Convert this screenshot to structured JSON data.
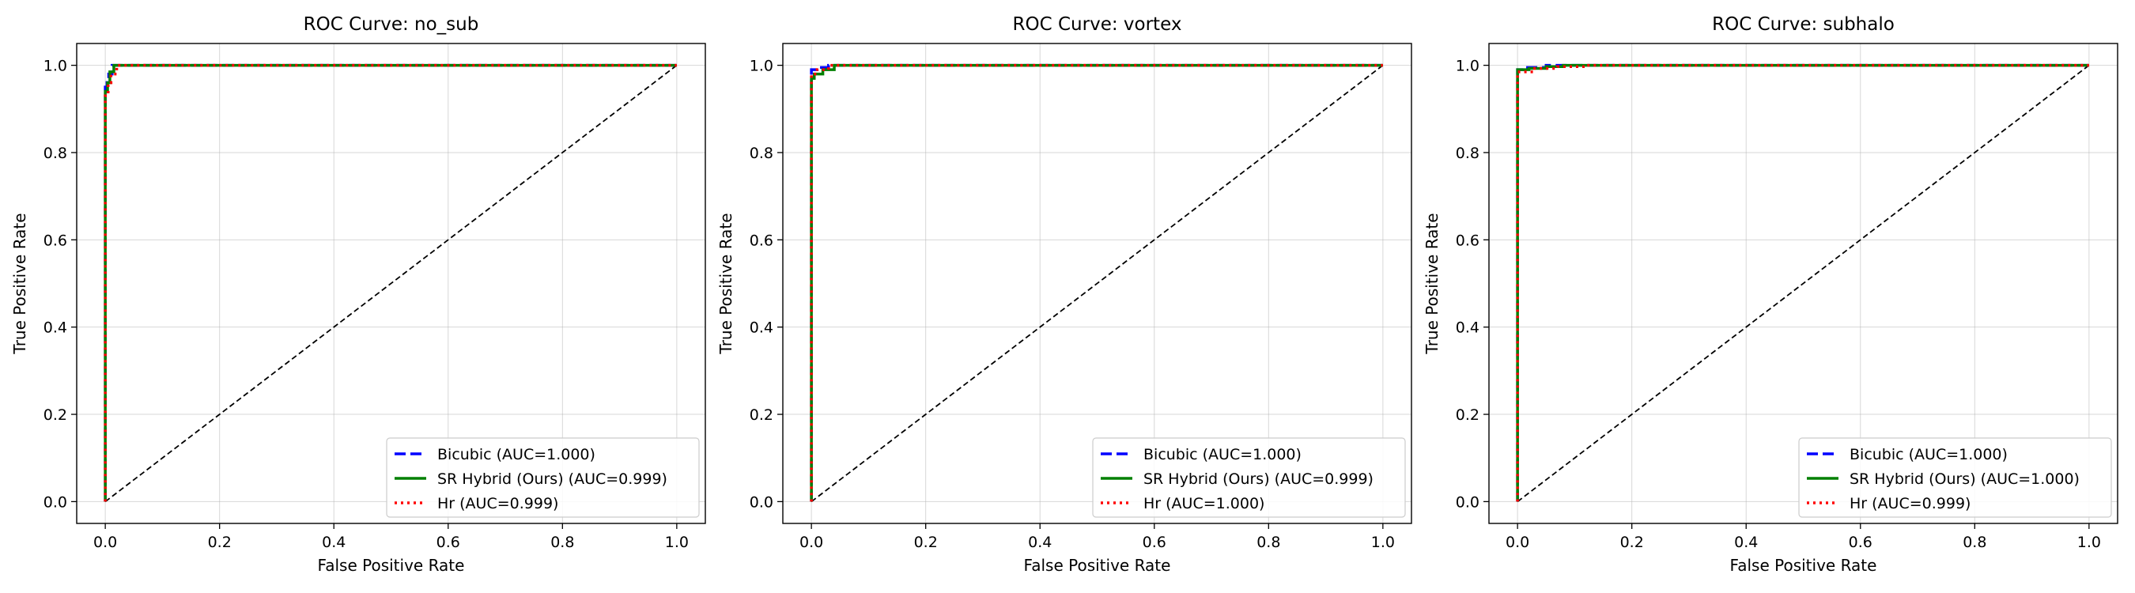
{
  "colors": {
    "bicubic": "#0000ff",
    "sr_hybrid": "#008000",
    "hr": "#ff0000",
    "diagonal": "#000000",
    "grid": "#b0b0b0"
  },
  "chart_data": [
    {
      "type": "line",
      "title": "ROC Curve: no_sub",
      "xlabel": "False Positive Rate",
      "ylabel": "True Positive Rate",
      "xlim": [
        -0.05,
        1.05
      ],
      "ylim": [
        -0.05,
        1.05
      ],
      "xticks": [
        "0.0",
        "0.2",
        "0.4",
        "0.6",
        "0.8",
        "1.0"
      ],
      "yticks": [
        "0.0",
        "0.2",
        "0.4",
        "0.6",
        "0.8",
        "1.0"
      ],
      "grid": true,
      "legend_position": "lower right",
      "series": [
        {
          "name": "Bicubic (AUC=1.000)",
          "style": "dashed",
          "color_key": "bicubic",
          "x": [
            0,
            0,
            0.003,
            0.003,
            0.006,
            0.006,
            0.012,
            0.012,
            1.0
          ],
          "y": [
            0,
            0.95,
            0.95,
            0.97,
            0.97,
            0.98,
            0.98,
            1.0,
            1.0
          ]
        },
        {
          "name": "SR Hybrid (Ours) (AUC=0.999)",
          "style": "solid",
          "color_key": "sr_hybrid",
          "x": [
            0,
            0,
            0.004,
            0.004,
            0.008,
            0.008,
            0.015,
            0.015,
            1.0
          ],
          "y": [
            0,
            0.94,
            0.94,
            0.96,
            0.96,
            0.985,
            0.985,
            1.0,
            1.0
          ]
        },
        {
          "name": "Hr (AUC=0.999)",
          "style": "dotted",
          "color_key": "hr",
          "x": [
            0,
            0,
            0.005,
            0.005,
            0.01,
            0.01,
            0.02,
            0.02,
            1.0
          ],
          "y": [
            0,
            0.93,
            0.93,
            0.96,
            0.96,
            0.98,
            0.98,
            1.0,
            1.0
          ]
        }
      ]
    },
    {
      "type": "line",
      "title": "ROC Curve: vortex",
      "xlabel": "False Positive Rate",
      "ylabel": "True Positive Rate",
      "xlim": [
        -0.05,
        1.05
      ],
      "ylim": [
        -0.05,
        1.05
      ],
      "xticks": [
        "0.0",
        "0.2",
        "0.4",
        "0.6",
        "0.8",
        "1.0"
      ],
      "yticks": [
        "0.0",
        "0.2",
        "0.4",
        "0.6",
        "0.8",
        "1.0"
      ],
      "grid": true,
      "legend_position": "lower right",
      "series": [
        {
          "name": "Bicubic (AUC=1.000)",
          "style": "dashed",
          "color_key": "bicubic",
          "x": [
            0,
            0,
            0.01,
            0.01,
            0.03,
            0.03,
            1.0
          ],
          "y": [
            0,
            0.99,
            0.99,
            0.995,
            0.995,
            1.0,
            1.0
          ]
        },
        {
          "name": "SR Hybrid (Ours) (AUC=0.999)",
          "style": "solid",
          "color_key": "sr_hybrid",
          "x": [
            0,
            0,
            0.005,
            0.005,
            0.02,
            0.02,
            0.04,
            0.04,
            1.0
          ],
          "y": [
            0,
            0.97,
            0.97,
            0.98,
            0.98,
            0.99,
            0.99,
            1.0,
            1.0
          ]
        },
        {
          "name": "Hr (AUC=1.000)",
          "style": "dotted",
          "color_key": "hr",
          "x": [
            0,
            0,
            0.01,
            0.01,
            0.03,
            0.03,
            1.0
          ],
          "y": [
            0,
            0.98,
            0.98,
            0.99,
            0.99,
            1.0,
            1.0
          ]
        }
      ]
    },
    {
      "type": "line",
      "title": "ROC Curve: subhalo",
      "xlabel": "False Positive Rate",
      "ylabel": "True Positive Rate",
      "xlim": [
        -0.05,
        1.05
      ],
      "ylim": [
        -0.05,
        1.05
      ],
      "xticks": [
        "0.0",
        "0.2",
        "0.4",
        "0.6",
        "0.8",
        "1.0"
      ],
      "yticks": [
        "0.0",
        "0.2",
        "0.4",
        "0.6",
        "0.8",
        "1.0"
      ],
      "grid": true,
      "legend_position": "lower right",
      "series": [
        {
          "name": "Bicubic (AUC=1.000)",
          "style": "dashed",
          "color_key": "bicubic",
          "x": [
            0,
            0,
            0.01,
            0.01,
            0.05,
            0.05,
            1.0
          ],
          "y": [
            0,
            0.99,
            0.99,
            0.995,
            0.995,
            1.0,
            1.0
          ]
        },
        {
          "name": "SR Hybrid (Ours) (AUC=1.000)",
          "style": "solid",
          "color_key": "sr_hybrid",
          "x": [
            0,
            0,
            0.02,
            0.02,
            0.05,
            0.05,
            0.08,
            0.08,
            1.0
          ],
          "y": [
            0,
            0.99,
            0.99,
            0.993,
            0.993,
            0.997,
            0.997,
            1.0,
            1.0
          ]
        },
        {
          "name": "Hr (AUC=0.999)",
          "style": "dotted",
          "color_key": "hr",
          "x": [
            0,
            0,
            0.03,
            0.03,
            0.07,
            0.07,
            0.12,
            0.12,
            1.0
          ],
          "y": [
            0,
            0.985,
            0.985,
            0.993,
            0.993,
            0.997,
            0.997,
            1.0,
            1.0
          ]
        }
      ]
    }
  ]
}
